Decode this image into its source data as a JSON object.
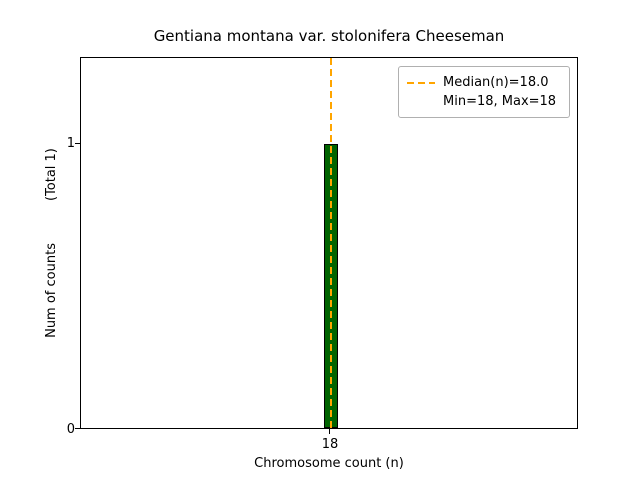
{
  "figure": {
    "title": "Gentiana montana var. stolonifera Cheeseman",
    "xlabel": "Chromosome count (n)",
    "ylabel": "Num of counts",
    "total_label": "(Total 1)",
    "xticks": {
      "t18": "18"
    },
    "yticks": {
      "t0": "0",
      "t1": "1"
    },
    "legend": {
      "median_label": "Median(n)=18.0",
      "minmax_label": "Min=18, Max=18"
    },
    "colors": {
      "bar_fill": "#006400",
      "bar_edge": "#000000",
      "median_line": "#FFA500",
      "legend_border": "#b0b0b0"
    }
  },
  "chart_data": {
    "type": "bar",
    "title": "Gentiana montana var. stolonifera Cheeseman",
    "xlabel": "Chromosome count (n)",
    "ylabel": "Num of counts",
    "categories": [
      18
    ],
    "values": [
      1
    ],
    "total_counts": 1,
    "median_n": 18.0,
    "min_n": 18,
    "max_n": 18,
    "ylim": [
      0,
      1.3
    ],
    "yticks": [
      0,
      1
    ],
    "xticks": [
      18
    ],
    "grid": false,
    "legend_position": "upper right",
    "legend_entries": [
      "Median(n)=18.0",
      "Min=18, Max=18"
    ],
    "bar_color": "#006400",
    "bar_edge_color": "#000000",
    "median_line_color": "#FFA500",
    "median_line_style": "dashed"
  }
}
